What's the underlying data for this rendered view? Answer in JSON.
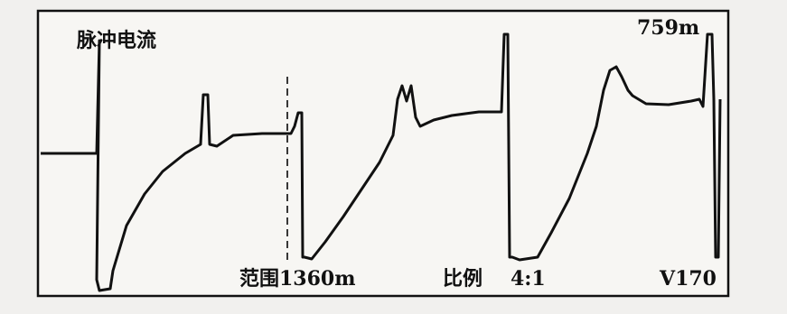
{
  "screen": {
    "title": "脉冲电流",
    "distance": "759m",
    "range": "范围1360m",
    "scale_label": "比例",
    "scale": "4:1",
    "velocity": "V170"
  }
}
